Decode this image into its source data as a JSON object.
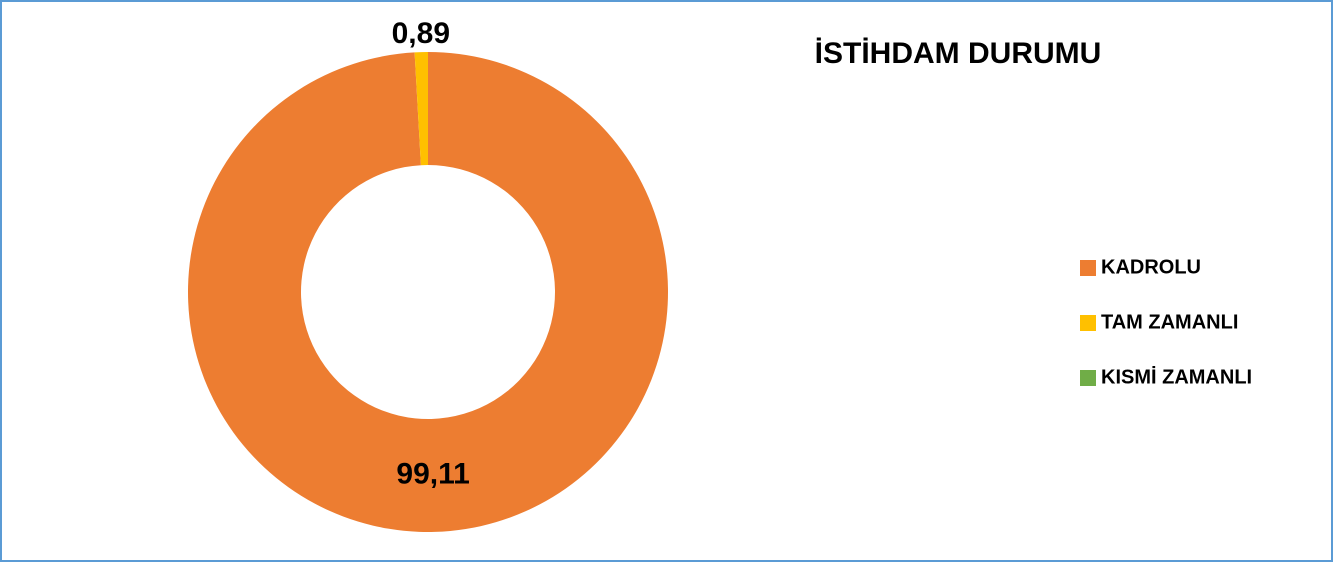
{
  "chart_data": {
    "type": "pie",
    "donut": true,
    "title": "İSTİHDAM DURUMU",
    "categories": [
      "KADROLU",
      "TAM ZAMANLI",
      "KISMİ ZAMANLI"
    ],
    "values": [
      99.11,
      0.89,
      0
    ],
    "value_labels": [
      "99,11",
      "0,89",
      null
    ],
    "colors": [
      "#ed7d31",
      "#ffc000",
      "#70ad47"
    ],
    "legend": "right"
  }
}
